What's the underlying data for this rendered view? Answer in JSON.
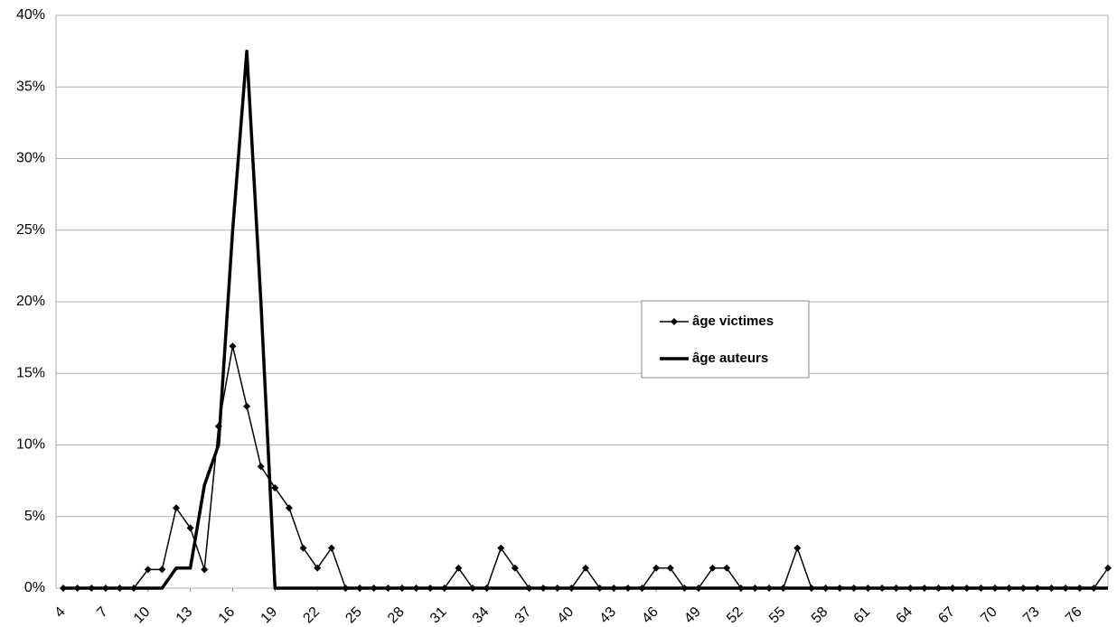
{
  "chart_data": {
    "type": "line",
    "x": [
      4,
      5,
      6,
      7,
      8,
      9,
      10,
      11,
      12,
      13,
      14,
      15,
      16,
      17,
      18,
      19,
      20,
      21,
      22,
      23,
      24,
      25,
      26,
      27,
      28,
      29,
      30,
      31,
      32,
      33,
      34,
      35,
      36,
      37,
      38,
      39,
      40,
      41,
      42,
      43,
      44,
      45,
      46,
      47,
      48,
      49,
      50,
      51,
      52,
      53,
      54,
      55,
      56,
      57,
      58,
      59,
      60,
      61,
      62,
      63,
      64,
      65,
      66,
      67,
      68,
      69,
      70,
      71,
      72,
      73,
      74,
      75,
      76,
      77,
      78
    ],
    "series": [
      {
        "name": "âge victimes",
        "color": "#000000",
        "marker": true,
        "values": [
          0,
          0,
          0,
          0,
          0,
          0,
          1.3,
          1.3,
          5.6,
          4.2,
          1.3,
          11.3,
          16.9,
          12.7,
          8.5,
          7.0,
          5.6,
          2.8,
          1.4,
          2.8,
          0,
          0,
          0,
          0,
          0,
          0,
          0,
          0,
          1.4,
          0,
          0,
          2.8,
          1.4,
          0,
          0,
          0,
          0,
          1.4,
          0,
          0,
          0,
          0,
          1.4,
          1.4,
          0,
          0,
          1.4,
          1.4,
          0,
          0,
          0,
          0,
          2.8,
          0,
          0,
          0,
          0,
          0,
          0,
          0,
          0,
          0,
          0,
          0,
          0,
          0,
          0,
          0,
          0,
          0,
          0,
          0,
          0,
          0,
          1.4
        ]
      },
      {
        "name": "âge auteurs",
        "color": "#000000",
        "marker": false,
        "values": [
          0,
          0,
          0,
          0,
          0,
          0,
          0,
          0,
          1.4,
          1.4,
          7.2,
          10,
          25,
          37.5,
          20,
          0,
          0,
          0,
          0,
          0,
          0,
          0,
          0,
          0,
          0,
          0,
          0,
          0,
          0,
          0,
          0,
          0,
          0,
          0,
          0,
          0,
          0,
          0,
          0,
          0,
          0,
          0,
          0,
          0,
          0,
          0,
          0,
          0,
          0,
          0,
          0,
          0,
          0,
          0,
          0,
          0,
          0,
          0,
          0,
          0,
          0,
          0,
          0,
          0,
          0,
          0,
          0,
          0,
          0,
          0,
          0,
          0,
          0,
          0,
          0
        ]
      }
    ],
    "xlim": [
      4,
      78
    ],
    "xticks": [
      4,
      7,
      10,
      13,
      16,
      19,
      22,
      25,
      28,
      31,
      34,
      37,
      40,
      43,
      46,
      49,
      52,
      55,
      58,
      61,
      64,
      67,
      70,
      73,
      76
    ],
    "ylim": [
      0,
      40
    ],
    "yticks": [
      {
        "value": 0,
        "label": "0%"
      },
      {
        "value": 5,
        "label": "5%"
      },
      {
        "value": 10,
        "label": "10%"
      },
      {
        "value": 15,
        "label": "15%"
      },
      {
        "value": 20,
        "label": "20%"
      },
      {
        "value": 25,
        "label": "25%"
      },
      {
        "value": 30,
        "label": "30%"
      },
      {
        "value": 35,
        "label": "35%"
      },
      {
        "value": 40,
        "label": "40%"
      }
    ],
    "grid": true
  }
}
